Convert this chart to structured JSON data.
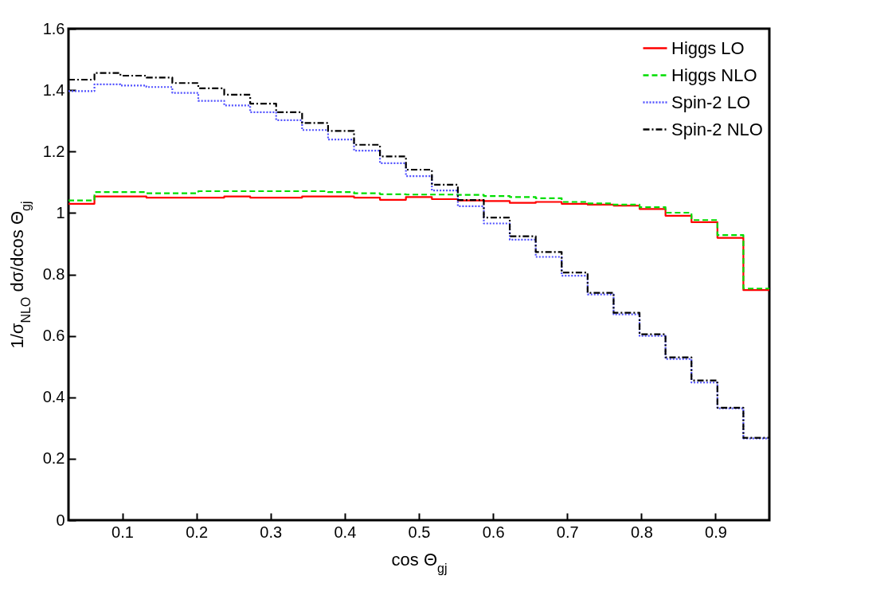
{
  "chart_data": {
    "type": "histogram",
    "xlabel": "cos Θ$_{gj}$",
    "ylabel": "1/σ$_{NLO}$ dσ/dcos Θ$_{gj}$",
    "bins": [
      0.0275,
      0.0625,
      0.0975,
      0.1325,
      0.1675,
      0.2025,
      0.2375,
      0.2725,
      0.3075,
      0.3425,
      0.3775,
      0.4125,
      0.4475,
      0.4825,
      0.5175,
      0.5525,
      0.5875,
      0.6225,
      0.6575,
      0.6925,
      0.7275,
      0.7625,
      0.7975,
      0.8325,
      0.8675,
      0.9025,
      0.9375,
      0.9725
    ],
    "series": [
      {
        "name": "Higgs LO",
        "color": "#ff0000",
        "line_style": "solid",
        "values": [
          1.03,
          1.054,
          1.054,
          1.05,
          1.05,
          1.05,
          1.054,
          1.05,
          1.05,
          1.054,
          1.054,
          1.05,
          1.043,
          1.052,
          1.045,
          1.041,
          1.039,
          1.033,
          1.036,
          1.03,
          1.027,
          1.024,
          1.013,
          0.991,
          0.97,
          0.919,
          0.749
        ]
      },
      {
        "name": "Higgs NLO",
        "color": "#00dd00",
        "line_style": "dashed",
        "values": [
          1.041,
          1.068,
          1.068,
          1.064,
          1.064,
          1.071,
          1.071,
          1.071,
          1.071,
          1.071,
          1.068,
          1.064,
          1.061,
          1.06,
          1.06,
          1.059,
          1.055,
          1.052,
          1.048,
          1.036,
          1.031,
          1.027,
          1.019,
          1.001,
          0.977,
          0.928,
          0.754
        ]
      },
      {
        "name": "Spin-2 LO",
        "color": "#5050ff",
        "line_style": "dotted",
        "values": [
          1.397,
          1.419,
          1.415,
          1.41,
          1.391,
          1.365,
          1.35,
          1.328,
          1.302,
          1.27,
          1.239,
          1.203,
          1.162,
          1.12,
          1.073,
          1.022,
          0.966,
          0.913,
          0.857,
          0.796,
          0.735,
          0.67,
          0.6,
          0.525,
          0.448,
          0.364,
          0.266
        ]
      },
      {
        "name": "Spin-2 NLO",
        "color": "#000000",
        "line_style": "dashdot",
        "values": [
          1.434,
          1.456,
          1.447,
          1.441,
          1.423,
          1.406,
          1.385,
          1.356,
          1.328,
          1.293,
          1.267,
          1.222,
          1.184,
          1.141,
          1.092,
          1.042,
          0.985,
          0.924,
          0.873,
          0.806,
          0.74,
          0.675,
          0.605,
          0.53,
          0.455,
          0.366,
          0.268
        ]
      }
    ],
    "xlim": [
      0.0275,
      0.9725
    ],
    "xticks": [
      0.1,
      0.2,
      0.3,
      0.4,
      0.5,
      0.6,
      0.7,
      0.8,
      0.9
    ],
    "ylim": [
      0,
      1.6
    ],
    "yticks": [
      0,
      0.2,
      0.4,
      0.6,
      0.8,
      1,
      1.2,
      1.4,
      1.6
    ],
    "grid": false,
    "legend": "top right"
  }
}
